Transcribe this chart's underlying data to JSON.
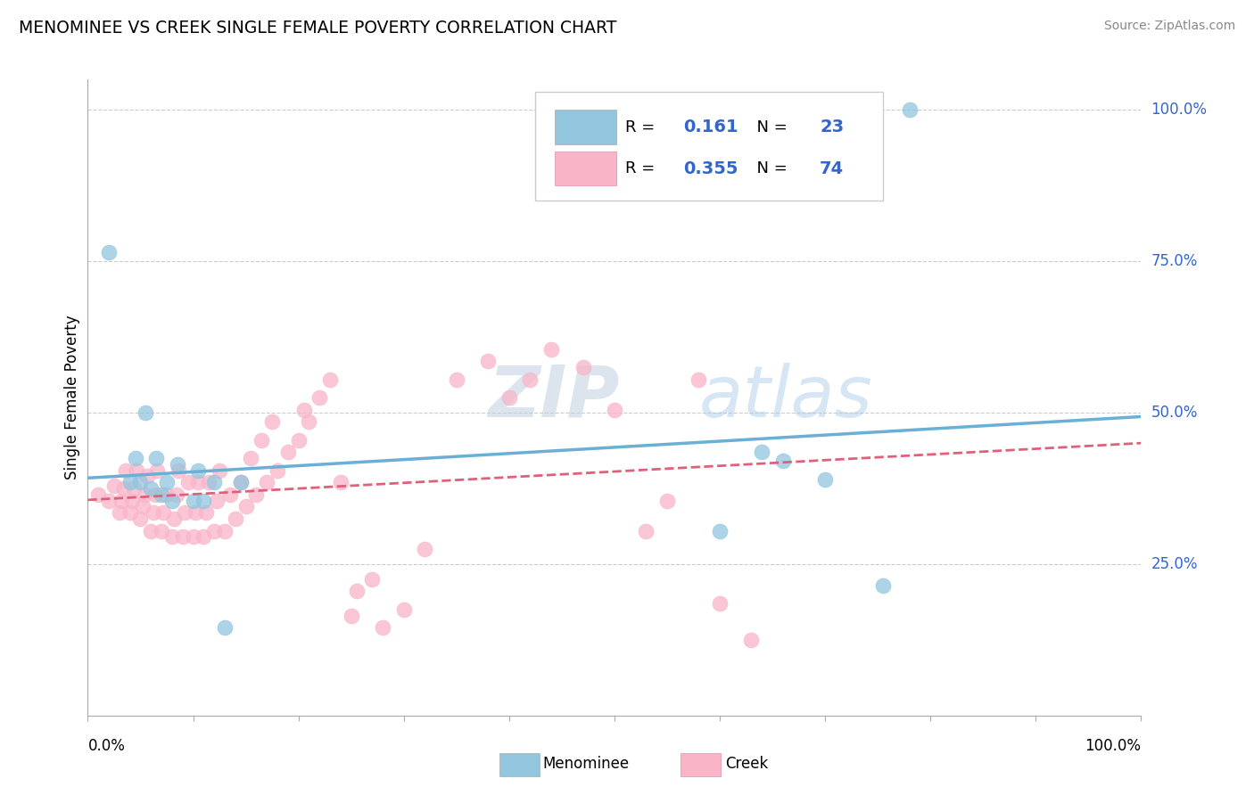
{
  "title": "MENOMINEE VS CREEK SINGLE FEMALE POVERTY CORRELATION CHART",
  "source": "Source: ZipAtlas.com",
  "ylabel": "Single Female Poverty",
  "ytick_labels": [
    "25.0%",
    "50.0%",
    "75.0%",
    "100.0%"
  ],
  "ytick_values": [
    0.25,
    0.5,
    0.75,
    1.0
  ],
  "menominee_color": "#92c5de",
  "creek_color": "#f9b4c8",
  "creek_line_color": "#e0607a",
  "menominee_line_color": "#6aafd6",
  "legend_blue": "#3366cc",
  "menominee_R": "0.161",
  "menominee_N": "23",
  "creek_R": "0.355",
  "creek_N": "74",
  "menominee_x": [
    0.02,
    0.04,
    0.045,
    0.05,
    0.055,
    0.06,
    0.065,
    0.07,
    0.075,
    0.08,
    0.085,
    0.1,
    0.105,
    0.11,
    0.12,
    0.13,
    0.145,
    0.6,
    0.64,
    0.66,
    0.7,
    0.755,
    0.78
  ],
  "menominee_y": [
    0.765,
    0.385,
    0.425,
    0.385,
    0.5,
    0.375,
    0.425,
    0.365,
    0.385,
    0.355,
    0.415,
    0.355,
    0.405,
    0.355,
    0.385,
    0.145,
    0.385,
    0.305,
    0.435,
    0.42,
    0.39,
    0.215,
    1.0
  ],
  "creek_x": [
    0.01,
    0.02,
    0.025,
    0.03,
    0.032,
    0.034,
    0.036,
    0.04,
    0.042,
    0.044,
    0.046,
    0.05,
    0.052,
    0.054,
    0.056,
    0.06,
    0.062,
    0.064,
    0.066,
    0.07,
    0.072,
    0.074,
    0.08,
    0.082,
    0.084,
    0.086,
    0.09,
    0.092,
    0.095,
    0.1,
    0.102,
    0.105,
    0.11,
    0.112,
    0.115,
    0.12,
    0.122,
    0.125,
    0.13,
    0.135,
    0.14,
    0.145,
    0.15,
    0.155,
    0.16,
    0.165,
    0.17,
    0.175,
    0.18,
    0.19,
    0.2,
    0.205,
    0.21,
    0.22,
    0.23,
    0.24,
    0.25,
    0.255,
    0.27,
    0.28,
    0.3,
    0.32,
    0.35,
    0.38,
    0.4,
    0.42,
    0.44,
    0.47,
    0.5,
    0.53,
    0.55,
    0.58,
    0.6,
    0.63
  ],
  "creek_y": [
    0.365,
    0.355,
    0.38,
    0.335,
    0.355,
    0.375,
    0.405,
    0.335,
    0.355,
    0.375,
    0.405,
    0.325,
    0.345,
    0.365,
    0.395,
    0.305,
    0.335,
    0.365,
    0.405,
    0.305,
    0.335,
    0.365,
    0.295,
    0.325,
    0.365,
    0.405,
    0.295,
    0.335,
    0.385,
    0.295,
    0.335,
    0.385,
    0.295,
    0.335,
    0.385,
    0.305,
    0.355,
    0.405,
    0.305,
    0.365,
    0.325,
    0.385,
    0.345,
    0.425,
    0.365,
    0.455,
    0.385,
    0.485,
    0.405,
    0.435,
    0.455,
    0.505,
    0.485,
    0.525,
    0.555,
    0.385,
    0.165,
    0.205,
    0.225,
    0.145,
    0.175,
    0.275,
    0.555,
    0.585,
    0.525,
    0.555,
    0.605,
    0.575,
    0.505,
    0.305,
    0.355,
    0.555,
    0.185,
    0.125
  ]
}
